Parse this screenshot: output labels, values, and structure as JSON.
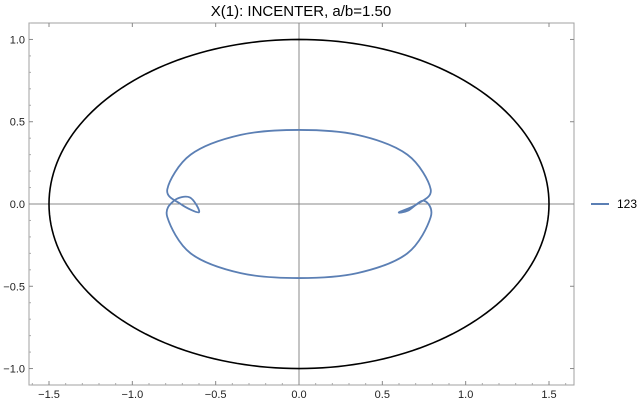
{
  "chart_data": {
    "type": "line",
    "title": "X(1): INCENTER, a/b=1.50",
    "xlabel": "",
    "ylabel": "",
    "xlim": [
      -1.62,
      1.65
    ],
    "ylim": [
      -1.1,
      1.1
    ],
    "x_ticks": [
      -1.5,
      -1.0,
      -0.5,
      0.0,
      0.5,
      1.0,
      1.5
    ],
    "x_tick_labels": [
      "−1.5",
      "−1.0",
      "−0.5",
      "0.0",
      "0.5",
      "1.0",
      "1.5"
    ],
    "y_ticks": [
      -1.0,
      -0.5,
      0.0,
      0.5,
      1.0
    ],
    "y_tick_labels": [
      "−1.0",
      "−0.5",
      "0.0",
      "0.5",
      "1.0"
    ],
    "grid": false,
    "legend_position": "right",
    "series": [
      {
        "name": "",
        "color": "#000000",
        "description_type": "ellipse",
        "x": [
          1.5,
          1.299,
          0.75,
          0.0,
          -0.75,
          -1.299,
          -1.5,
          -1.299,
          -0.75,
          0.0,
          0.75,
          1.299,
          1.5
        ],
        "y": [
          0.0,
          0.5,
          0.866,
          1.0,
          0.866,
          0.5,
          0.0,
          -0.5,
          -0.866,
          -1.0,
          -0.866,
          -0.5,
          0.0
        ]
      },
      {
        "name": "123",
        "color": "#5b7fb4",
        "x": [
          0.0,
          0.35,
          0.65,
          0.79,
          0.71,
          0.6,
          0.655,
          0.75,
          0.79,
          0.65,
          0.35,
          0.0,
          -0.35,
          -0.65,
          -0.79,
          -0.75,
          -0.655,
          -0.6,
          -0.71,
          -0.79,
          -0.65,
          -0.35,
          0.0
        ],
        "y": [
          0.45,
          0.42,
          0.3,
          0.09,
          0.0,
          -0.05,
          -0.04,
          0.02,
          -0.08,
          -0.3,
          -0.42,
          -0.45,
          -0.42,
          -0.3,
          -0.08,
          0.02,
          0.04,
          -0.05,
          0.0,
          0.09,
          0.3,
          0.42,
          0.45
        ]
      }
    ]
  }
}
